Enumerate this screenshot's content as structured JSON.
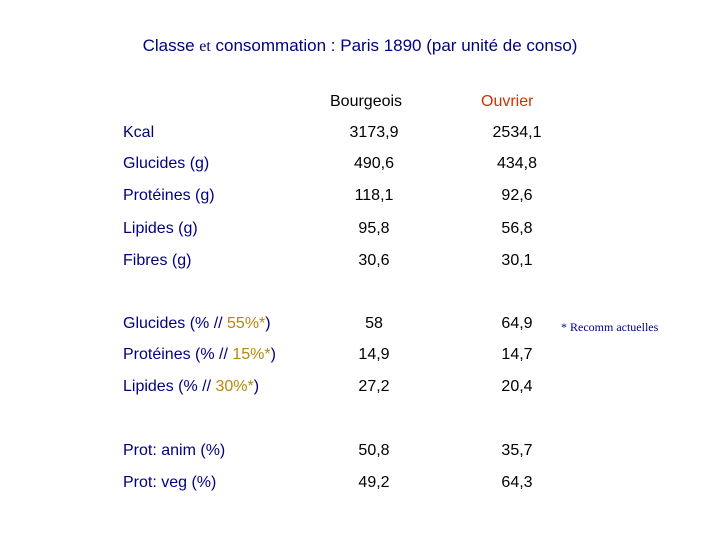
{
  "title": {
    "part1": "Classe ",
    "conj": "et",
    "part2": " consommation : Paris 1890 (par unité de conso)"
  },
  "columns": {
    "bourgeois": "Bourgeois",
    "ouvrier": "Ouvrier"
  },
  "rows": [
    {
      "label": "Kcal",
      "bourgeois": "3173,9",
      "ouvrier": "2534,1"
    },
    {
      "label": "Glucides (g)",
      "bourgeois": "490,6",
      "ouvrier": "434,8"
    },
    {
      "label": "Protéines (g)",
      "bourgeois": "118,1",
      "ouvrier": "92,6"
    },
    {
      "label": "Lipides (g)",
      "bourgeois": "95,8",
      "ouvrier": "56,8"
    },
    {
      "label": "Fibres (g)",
      "bourgeois": "30,6",
      "ouvrier": "30,1"
    },
    {
      "label_prefix": "Glucides (% // ",
      "label_pct": "55%*",
      "label_suffix": ")",
      "bourgeois": "58",
      "ouvrier": "64,9"
    },
    {
      "label_prefix": "Protéines (% // ",
      "label_pct": "15%*",
      "label_suffix": ")",
      "bourgeois": "14,9",
      "ouvrier": "14,7"
    },
    {
      "label_prefix": "Lipides (% // ",
      "label_pct": "30%*",
      "label_suffix": ")",
      "bourgeois": "27,2",
      "ouvrier": "20,4"
    },
    {
      "label": "Prot: anim (%)",
      "bourgeois": "50,8",
      "ouvrier": "35,7"
    },
    {
      "label": "Prot: veg (%)",
      "bourgeois": "49,2",
      "ouvrier": "64,3"
    }
  ],
  "footnote": "* Recomm actuelles",
  "colors": {
    "title": "#000080",
    "labels": "#000080",
    "ouvrier_header": "#cc3300",
    "recommendation": "#b8860b"
  }
}
